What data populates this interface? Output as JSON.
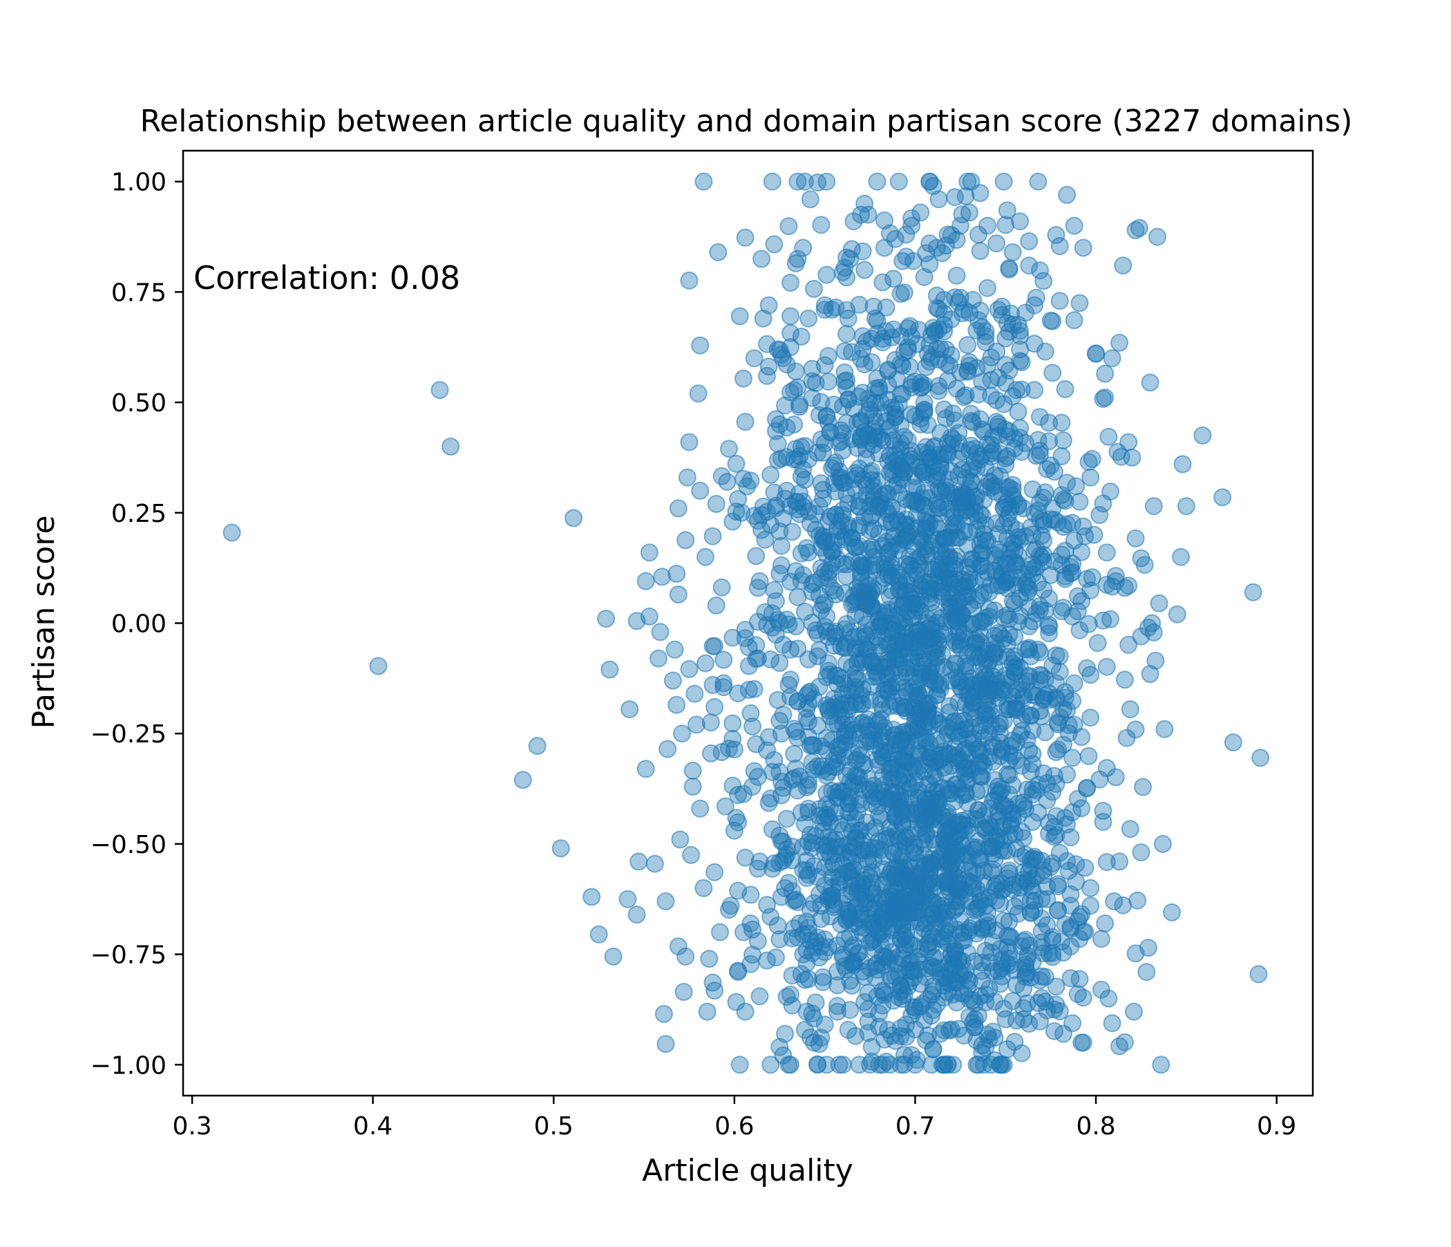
{
  "chart_data": {
    "type": "scatter",
    "title": "Relationship between article quality and domain partisan score (3227 domains)",
    "xlabel": "Article quality",
    "ylabel": "Partisan score",
    "annotation": "Correlation: 0.08",
    "xlim": [
      0.295,
      0.92
    ],
    "ylim": [
      -1.07,
      1.07
    ],
    "xticks": [
      {
        "value": 0.3,
        "label": "0.3"
      },
      {
        "value": 0.4,
        "label": "0.4"
      },
      {
        "value": 0.5,
        "label": "0.5"
      },
      {
        "value": 0.6,
        "label": "0.6"
      },
      {
        "value": 0.7,
        "label": "0.7"
      },
      {
        "value": 0.8,
        "label": "0.8"
      },
      {
        "value": 0.9,
        "label": "0.9"
      }
    ],
    "yticks": [
      {
        "value": 1.0,
        "label": "1.00"
      },
      {
        "value": 0.75,
        "label": "0.75"
      },
      {
        "value": 0.5,
        "label": "0.50"
      },
      {
        "value": 0.25,
        "label": "0.25"
      },
      {
        "value": 0.0,
        "label": "0.00"
      },
      {
        "value": -0.25,
        "label": "−0.25"
      },
      {
        "value": -0.5,
        "label": "−0.50"
      },
      {
        "value": -0.75,
        "label": "−0.75"
      },
      {
        "value": -1.0,
        "label": "−1.00"
      }
    ],
    "grid": false,
    "point_color": "#1f77b4",
    "point_alpha": 0.4,
    "points": [
      [
        0.322,
        0.205
      ],
      [
        0.403,
        -0.097
      ],
      [
        0.437,
        0.528
      ],
      [
        0.443,
        0.4
      ],
      [
        0.483,
        -0.355
      ],
      [
        0.491,
        -0.278
      ],
      [
        0.504,
        -0.51
      ],
      [
        0.511,
        0.238
      ],
      [
        0.521,
        -0.62
      ],
      [
        0.525,
        -0.705
      ],
      [
        0.529,
        0.01
      ],
      [
        0.531,
        -0.105
      ],
      [
        0.533,
        -0.755
      ],
      [
        0.541,
        -0.625
      ],
      [
        0.542,
        -0.195
      ],
      [
        0.546,
        -0.66
      ],
      [
        0.546,
        0.005
      ],
      [
        0.547,
        -0.54
      ],
      [
        0.551,
        0.095
      ],
      [
        0.553,
        0.16
      ],
      [
        0.556,
        -0.545
      ],
      [
        0.558,
        -0.08
      ],
      [
        0.559,
        -0.02
      ],
      [
        0.56,
        0.105
      ],
      [
        0.561,
        -0.885
      ],
      [
        0.562,
        -0.63
      ],
      [
        0.563,
        -0.285
      ],
      [
        0.566,
        -0.13
      ],
      [
        0.567,
        -0.06
      ],
      [
        0.568,
        -0.185
      ],
      [
        0.569,
        0.26
      ],
      [
        0.569,
        0.065
      ],
      [
        0.57,
        -0.49
      ],
      [
        0.571,
        -0.25
      ],
      [
        0.572,
        -0.835
      ],
      [
        0.573,
        -0.755
      ],
      [
        0.574,
        0.33
      ],
      [
        0.575,
        0.41
      ],
      [
        0.577,
        -0.37
      ],
      [
        0.578,
        -0.16
      ],
      [
        0.579,
        -0.23
      ],
      [
        0.58,
        0.52
      ],
      [
        0.581,
        -0.42
      ],
      [
        0.583,
        -0.6
      ],
      [
        0.584,
        0.15
      ],
      [
        0.585,
        -0.88
      ],
      [
        0.586,
        -0.76
      ],
      [
        0.587,
        -0.295
      ],
      [
        0.589,
        -0.19
      ],
      [
        0.59,
        0.04
      ],
      [
        0.591,
        0.84
      ],
      [
        0.592,
        -0.7
      ],
      [
        0.594,
        -0.145
      ],
      [
        0.596,
        0.32
      ],
      [
        0.598,
        -0.64
      ],
      [
        0.6,
        -0.47
      ],
      [
        0.602,
        -0.79
      ],
      [
        0.604,
        0.25
      ],
      [
        0.606,
        -0.88
      ],
      [
        0.609,
        -0.615
      ],
      [
        0.611,
        0.6
      ],
      [
        0.613,
        -0.72
      ],
      [
        0.614,
        0.095
      ],
      [
        0.616,
        0.69
      ],
      [
        0.618,
        0.56
      ],
      [
        0.619,
        0.72
      ],
      [
        0.62,
        -1.0
      ],
      [
        0.622,
        -0.31
      ],
      [
        0.624,
        0.62
      ],
      [
        0.625,
        -0.96
      ],
      [
        0.627,
        0.6
      ],
      [
        0.628,
        -0.93
      ],
      [
        0.63,
        -1.0
      ],
      [
        0.631,
        0.695
      ],
      [
        0.633,
        0.45
      ],
      [
        0.634,
        0.815
      ],
      [
        0.636,
        0.495
      ],
      [
        0.638,
        0.85
      ],
      [
        0.64,
        -0.88
      ],
      [
        0.642,
        0.96
      ],
      [
        0.644,
        -0.95
      ],
      [
        0.648,
        -0.64
      ],
      [
        0.65,
        0.72
      ],
      [
        0.651,
        -1.0
      ],
      [
        0.654,
        0.71
      ],
      [
        0.657,
        -0.82
      ],
      [
        0.66,
        0.795
      ],
      [
        0.662,
        0.655
      ],
      [
        0.664,
        0.825
      ],
      [
        0.666,
        0.91
      ],
      [
        0.667,
        -0.935
      ],
      [
        0.67,
        0.925
      ],
      [
        0.672,
        0.8
      ],
      [
        0.674,
        0.925
      ],
      [
        0.676,
        -0.96
      ],
      [
        0.678,
        0.69
      ],
      [
        0.681,
        0.5
      ],
      [
        0.683,
        0.85
      ],
      [
        0.686,
        -1.0
      ],
      [
        0.689,
        0.87
      ],
      [
        0.692,
        -0.935
      ],
      [
        0.695,
        0.88
      ],
      [
        0.698,
        0.9
      ],
      [
        0.7,
        -0.92
      ],
      [
        0.703,
        0.93
      ],
      [
        0.706,
        -0.945
      ],
      [
        0.708,
        0.86
      ],
      [
        0.71,
        -0.965
      ],
      [
        0.713,
        0.96
      ],
      [
        0.716,
        -1.0
      ],
      [
        0.718,
        0.88
      ],
      [
        0.72,
        -0.92
      ],
      [
        0.722,
        0.965
      ],
      [
        0.725,
        0.9
      ],
      [
        0.727,
        0.71
      ],
      [
        0.73,
        0.93
      ],
      [
        0.733,
        -0.915
      ],
      [
        0.735,
        0.88
      ],
      [
        0.738,
        -1.0
      ],
      [
        0.74,
        0.9
      ],
      [
        0.743,
        -0.925
      ],
      [
        0.745,
        0.86
      ],
      [
        0.747,
        -1.0
      ],
      [
        0.749,
        -1.0
      ],
      [
        0.751,
        0.935
      ],
      [
        0.754,
        0.84
      ],
      [
        0.756,
        -0.9
      ],
      [
        0.758,
        0.91
      ],
      [
        0.761,
        -0.78
      ],
      [
        0.763,
        0.865
      ],
      [
        0.766,
        0.72
      ],
      [
        0.768,
        -0.86
      ],
      [
        0.771,
        0.775
      ],
      [
        0.773,
        -0.625
      ],
      [
        0.775,
        0.685
      ],
      [
        0.777,
        -0.875
      ],
      [
        0.78,
        0.73
      ],
      [
        0.782,
        -0.93
      ],
      [
        0.784,
        0.97
      ],
      [
        0.786,
        -0.64
      ],
      [
        0.788,
        0.9
      ],
      [
        0.79,
        -0.84
      ],
      [
        0.791,
        0.725
      ],
      [
        0.792,
        -0.95
      ],
      [
        0.793,
        0.85
      ],
      [
        0.795,
        0.1
      ],
      [
        0.797,
        -0.64
      ],
      [
        0.799,
        0.2
      ],
      [
        0.801,
        -0.045
      ],
      [
        0.802,
        0.245
      ],
      [
        0.803,
        -0.715
      ],
      [
        0.804,
        -0.45
      ],
      [
        0.806,
        0.16
      ],
      [
        0.807,
        -0.85
      ],
      [
        0.809,
        0.6
      ],
      [
        0.81,
        -0.63
      ],
      [
        0.813,
        -0.54
      ],
      [
        0.815,
        0.81
      ],
      [
        0.816,
        0.08
      ],
      [
        0.818,
        0.41
      ],
      [
        0.819,
        -0.195
      ],
      [
        0.82,
        0.375
      ],
      [
        0.821,
        -0.88
      ],
      [
        0.822,
        0.89
      ],
      [
        0.824,
        0.895
      ],
      [
        0.825,
        -0.03
      ],
      [
        0.828,
        -0.79
      ],
      [
        0.83,
        -0.115
      ],
      [
        0.831,
        0.0
      ],
      [
        0.832,
        0.265
      ],
      [
        0.834,
        0.875
      ],
      [
        0.835,
        0.045
      ],
      [
        0.836,
        -1.0
      ],
      [
        0.837,
        -0.5
      ],
      [
        0.838,
        -0.24
      ],
      [
        0.842,
        -0.655
      ],
      [
        0.845,
        0.02
      ],
      [
        0.847,
        0.15
      ],
      [
        0.848,
        0.36
      ],
      [
        0.85,
        0.265
      ],
      [
        0.859,
        0.425
      ],
      [
        0.87,
        0.285
      ],
      [
        0.876,
        -0.27
      ],
      [
        0.887,
        0.07
      ],
      [
        0.89,
        -0.795
      ],
      [
        0.891,
        -0.305
      ]
    ]
  }
}
